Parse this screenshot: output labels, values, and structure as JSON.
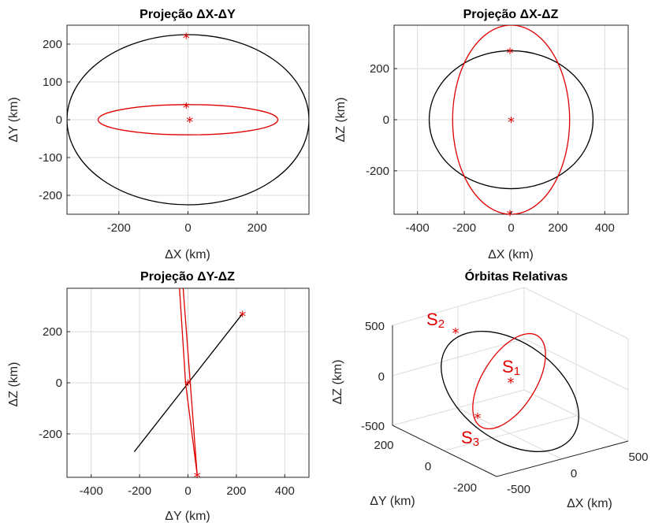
{
  "chart_data": [
    {
      "type": "line",
      "title": "Projeção ΔX-ΔY",
      "xlabel": "ΔX (km)",
      "ylabel": "ΔY (km)",
      "xlim": [
        -350,
        350
      ],
      "ylim": [
        -250,
        250
      ],
      "xticks": [
        "-200",
        "0",
        "200"
      ],
      "yticks": [
        "200",
        "100",
        "0",
        "-100",
        "-200"
      ],
      "grid": true,
      "series": [
        {
          "color": "#000000",
          "shape": "ellipse",
          "center": [
            0,
            0
          ],
          "radii": [
            350,
            225
          ]
        },
        {
          "color": "#e00000",
          "shape": "ellipse",
          "center": [
            0,
            0
          ],
          "radii": [
            260,
            40
          ]
        }
      ],
      "markers": [
        {
          "x": -5,
          "y": 222,
          "color": "#e00000"
        },
        {
          "x": -5,
          "y": 38,
          "color": "#e00000"
        },
        {
          "x": 5,
          "y": 0,
          "color": "#e00000"
        }
      ]
    },
    {
      "type": "line",
      "title": "Projeção ΔX-ΔZ",
      "xlabel": "ΔX (km)",
      "ylabel": "ΔZ (km)",
      "xlim": [
        -500,
        500
      ],
      "ylim": [
        -370,
        370
      ],
      "xticks": [
        "-400",
        "-200",
        "0",
        "200",
        "400"
      ],
      "yticks": [
        "200",
        "0",
        "-200"
      ],
      "grid": true,
      "series": [
        {
          "color": "#000000",
          "shape": "ellipse",
          "center": [
            0,
            0
          ],
          "radii": [
            350,
            270
          ]
        },
        {
          "color": "#e00000",
          "shape": "ellipse",
          "center": [
            0,
            0
          ],
          "radii": [
            250,
            370
          ]
        }
      ],
      "markers": [
        {
          "x": -5,
          "y": 270,
          "color": "#e00000"
        },
        {
          "x": 0,
          "y": 0,
          "color": "#e00000"
        },
        {
          "x": -5,
          "y": -365,
          "color": "#e00000"
        }
      ]
    },
    {
      "type": "line",
      "title": "Projeção ΔY-ΔZ",
      "xlabel": "ΔY (km)",
      "ylabel": "ΔZ (km)",
      "xlim": [
        -500,
        500
      ],
      "ylim": [
        -370,
        370
      ],
      "xticks": [
        "-400",
        "-200",
        "0",
        "200",
        "400"
      ],
      "yticks": [
        "200",
        "0",
        "-200"
      ],
      "grid": true,
      "series": [
        {
          "color": "#000000",
          "points": [
            [
              -222,
              -270
            ],
            [
              225,
              270
            ]
          ]
        },
        {
          "color": "#e00000",
          "points": [
            [
              -35,
              370
            ],
            [
              -10,
              0
            ],
            [
              38,
              -360
            ],
            [
              -20,
              370
            ]
          ]
        }
      ],
      "markers": [
        {
          "x": 225,
          "y": 270,
          "color": "#e00000"
        },
        {
          "x": 0,
          "y": 0,
          "color": "#e00000"
        },
        {
          "x": 38,
          "y": -360,
          "color": "#e00000"
        }
      ]
    },
    {
      "type": "line",
      "title": "Órbitas Relativas",
      "xlabel": "ΔX (km)",
      "ylabel": "ΔZ (km)",
      "zlabel": "ΔY (km)",
      "xticks": [
        "-500",
        "0",
        "500"
      ],
      "yticks": [
        "200",
        "0",
        "-200"
      ],
      "zticks": [
        "500",
        "0",
        "-500"
      ],
      "grid": true,
      "satellites": [
        {
          "label": "S",
          "sub": "2"
        },
        {
          "label": "S",
          "sub": "1"
        },
        {
          "label": "S",
          "sub": "3"
        }
      ]
    }
  ],
  "colors": {
    "orbit_a": "#000000",
    "orbit_b": "#e00000",
    "grid": "#dcdcdc"
  }
}
